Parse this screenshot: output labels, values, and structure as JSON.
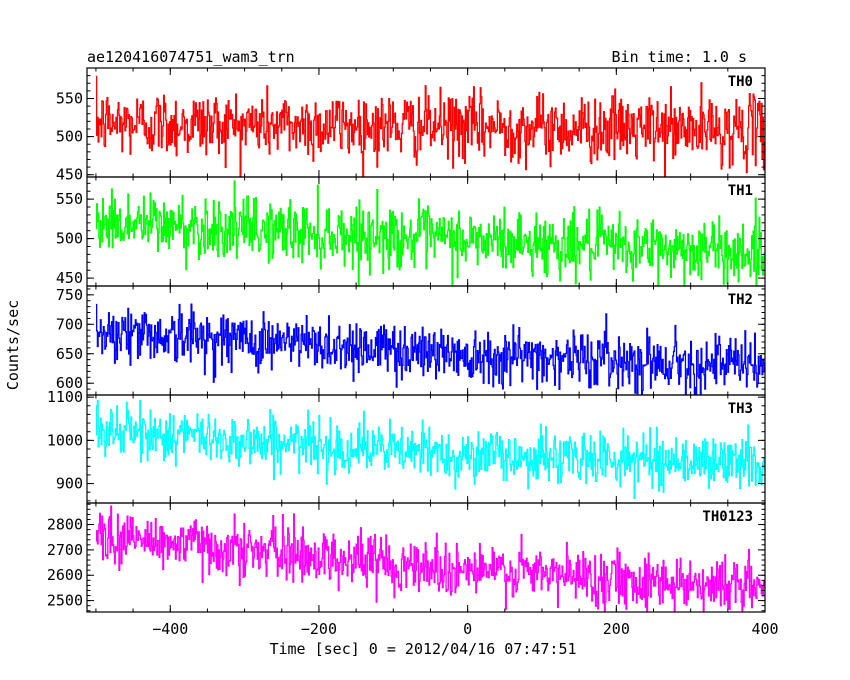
{
  "header": {
    "left_title": "ae120416074751_wam3_trn",
    "right_title": "Bin time: 1.0 s"
  },
  "chart_data": {
    "type": "line",
    "title": "ae120416074751_wam3_trn",
    "subtitle": "Bin time: 1.0 s",
    "xlabel": "Time [sec] 0 = 2012/04/16 07:47:51",
    "ylabel": "Counts/sec",
    "xlim": [
      -512,
      400
    ],
    "x_ticks": [
      -400,
      -200,
      0,
      200,
      400
    ],
    "bin_time_s": 1.0,
    "grid": false,
    "legend": "none",
    "panels": [
      {
        "name": "TH0",
        "color": "#ff0000",
        "ylim": [
          447,
          590
        ],
        "y_ticks": [
          450,
          500,
          550
        ],
        "trend": [
          {
            "x": -512,
            "y": 518
          },
          {
            "x": 0,
            "y": 513
          },
          {
            "x": 400,
            "y": 508
          }
        ],
        "noise_sigma": 22
      },
      {
        "name": "TH1",
        "color": "#00ff00",
        "ylim": [
          440,
          578
        ],
        "y_ticks": [
          450,
          500,
          550
        ],
        "trend": [
          {
            "x": -512,
            "y": 522
          },
          {
            "x": 0,
            "y": 498
          },
          {
            "x": 400,
            "y": 482
          }
        ],
        "noise_sigma": 20
      },
      {
        "name": "TH2",
        "color": "#0000ff",
        "ylim": [
          580,
          765
        ],
        "y_ticks": [
          600,
          650,
          700,
          750
        ],
        "trend": [
          {
            "x": -512,
            "y": 690
          },
          {
            "x": 0,
            "y": 650
          },
          {
            "x": 400,
            "y": 630
          }
        ],
        "noise_sigma": 24
      },
      {
        "name": "TH3",
        "color": "#00ffff",
        "ylim": [
          855,
          1105
        ],
        "y_ticks": [
          900,
          1000,
          1100
        ],
        "trend": [
          {
            "x": -512,
            "y": 1025
          },
          {
            "x": 0,
            "y": 965
          },
          {
            "x": 400,
            "y": 948
          }
        ],
        "noise_sigma": 30
      },
      {
        "name": "TH0123",
        "color": "#ff00ff",
        "ylim": [
          2455,
          2885
        ],
        "y_ticks": [
          2500,
          2600,
          2700,
          2800
        ],
        "trend": [
          {
            "x": -512,
            "y": 2760
          },
          {
            "x": 0,
            "y": 2620
          },
          {
            "x": 400,
            "y": 2555
          }
        ],
        "noise_sigma": 55
      }
    ]
  }
}
